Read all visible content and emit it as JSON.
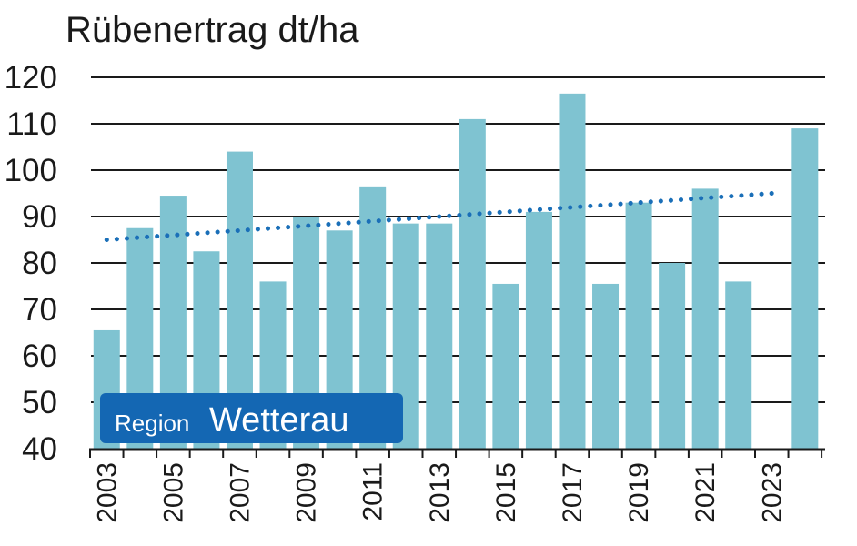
{
  "chart_data": {
    "type": "bar",
    "title": "Rübenertrag dt/ha",
    "xlabel": "",
    "ylabel": "",
    "ylim": [
      40,
      120
    ],
    "yticks": [
      40,
      50,
      60,
      70,
      80,
      90,
      100,
      110,
      120
    ],
    "grid": true,
    "categories": [
      "2003",
      "2004",
      "2005",
      "2006",
      "2007",
      "2008",
      "2009",
      "2010",
      "2011",
      "2012",
      "2013",
      "2014",
      "2015",
      "2016",
      "2017",
      "2018",
      "2019",
      "2020",
      "2021",
      "2022",
      "2023",
      "2024"
    ],
    "xtick_labels": [
      "2003",
      "2005",
      "2007",
      "2009",
      "2011",
      "2013",
      "2015",
      "2017",
      "2019",
      "2021",
      "2023"
    ],
    "values": [
      65.5,
      87.5,
      94.5,
      82.5,
      104,
      76,
      90,
      87,
      96.5,
      88.5,
      88.5,
      111,
      75.5,
      91,
      116.5,
      75.5,
      93,
      80,
      96,
      76,
      null,
      109
    ],
    "trendline": {
      "style": "dotted",
      "start": 85,
      "end": 95
    },
    "badge": {
      "small": "Region",
      "big": "Wetterau"
    },
    "colors": {
      "bar": "#7fc3d1",
      "trend": "#1a6fb8",
      "badge": "#1467b3"
    }
  }
}
